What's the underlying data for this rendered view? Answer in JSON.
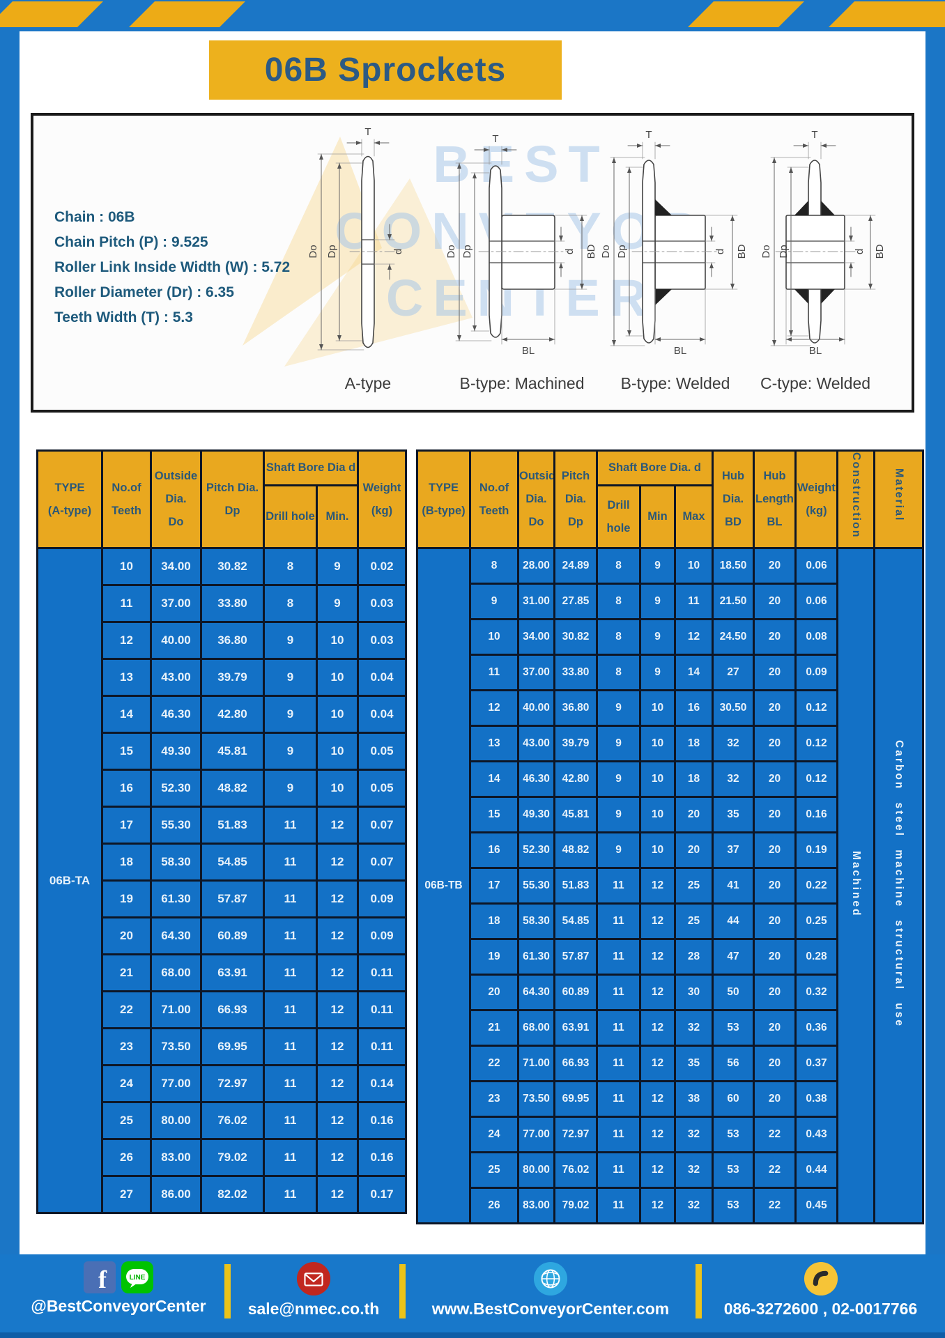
{
  "page": {
    "title": "06B Sprockets"
  },
  "colors": {
    "frame_blue": "#1b76c6",
    "gold": "#edb11d",
    "table_header_gold": "#e9a81f",
    "table_body_blue": "#1371c6",
    "footer_blue": "#1878ca"
  },
  "specs": {
    "lines": [
      "Chain  : 06B",
      "Chain Pitch (P)  :  9.525",
      "Roller Link Inside Width (W)  :  5.72",
      "Roller Diameter (Dr)  : 6.35",
      "Teeth Width (T)  :  5.3"
    ]
  },
  "watermark": "BEST\nCONVEYOR\nCENTER",
  "diagrams": {
    "dims": {
      "t": "T",
      "do": "Do",
      "dp": "Dp",
      "d": "d",
      "bd": "BD",
      "bl": "BL"
    },
    "labels": [
      "A-type",
      "B-type: Machined",
      "B-type: Welded",
      "C-type: Welded"
    ]
  },
  "table_a": {
    "headers": {
      "type": "TYPE\n(A-type)",
      "teeth": "No.of\nTeeth",
      "outside": "Outside\nDia.\nDo",
      "pitch": "Pitch Dia.\nDp",
      "bore_group": "Shaft Bore Dia d",
      "drill": "Drill hole",
      "min": "Min.",
      "weight": "Weight\n(kg)"
    },
    "type_label": "06B-TA",
    "rows": [
      [
        "10",
        "34.00",
        "30.82",
        "8",
        "9",
        "0.02"
      ],
      [
        "11",
        "37.00",
        "33.80",
        "8",
        "9",
        "0.03"
      ],
      [
        "12",
        "40.00",
        "36.80",
        "9",
        "10",
        "0.03"
      ],
      [
        "13",
        "43.00",
        "39.79",
        "9",
        "10",
        "0.04"
      ],
      [
        "14",
        "46.30",
        "42.80",
        "9",
        "10",
        "0.04"
      ],
      [
        "15",
        "49.30",
        "45.81",
        "9",
        "10",
        "0.05"
      ],
      [
        "16",
        "52.30",
        "48.82",
        "9",
        "10",
        "0.05"
      ],
      [
        "17",
        "55.30",
        "51.83",
        "11",
        "12",
        "0.07"
      ],
      [
        "18",
        "58.30",
        "54.85",
        "11",
        "12",
        "0.07"
      ],
      [
        "19",
        "61.30",
        "57.87",
        "11",
        "12",
        "0.09"
      ],
      [
        "20",
        "64.30",
        "60.89",
        "11",
        "12",
        "0.09"
      ],
      [
        "21",
        "68.00",
        "63.91",
        "11",
        "12",
        "0.11"
      ],
      [
        "22",
        "71.00",
        "66.93",
        "11",
        "12",
        "0.11"
      ],
      [
        "23",
        "73.50",
        "69.95",
        "11",
        "12",
        "0.11"
      ],
      [
        "24",
        "77.00",
        "72.97",
        "11",
        "12",
        "0.14"
      ],
      [
        "25",
        "80.00",
        "76.02",
        "11",
        "12",
        "0.16"
      ],
      [
        "26",
        "83.00",
        "79.02",
        "11",
        "12",
        "0.16"
      ],
      [
        "27",
        "86.00",
        "82.02",
        "11",
        "12",
        "0.17"
      ]
    ]
  },
  "table_b": {
    "headers": {
      "type": "TYPE\n(B-type)",
      "teeth": "No.of\nTeeth",
      "outside": "Outside\nDia.\nDo",
      "pitch": "Pitch\nDia.\nDp",
      "bore_group": "Shaft Bore Dia. d",
      "drill": "Drill hole",
      "min": "Min",
      "max": "Max",
      "hub_dia": "Hub\nDia.\nBD",
      "hub_len": "Hub\nLength\nBL",
      "weight": "Weight\n(kg)",
      "construction": "Construction",
      "material": "Material"
    },
    "type_label": "06B-TB",
    "construction_value": "Machined",
    "material_value": "Carbon steel machine structural use",
    "rows": [
      [
        "8",
        "28.00",
        "24.89",
        "8",
        "9",
        "10",
        "18.50",
        "20",
        "0.06"
      ],
      [
        "9",
        "31.00",
        "27.85",
        "8",
        "9",
        "11",
        "21.50",
        "20",
        "0.06"
      ],
      [
        "10",
        "34.00",
        "30.82",
        "8",
        "9",
        "12",
        "24.50",
        "20",
        "0.08"
      ],
      [
        "11",
        "37.00",
        "33.80",
        "8",
        "9",
        "14",
        "27",
        "20",
        "0.09"
      ],
      [
        "12",
        "40.00",
        "36.80",
        "9",
        "10",
        "16",
        "30.50",
        "20",
        "0.12"
      ],
      [
        "13",
        "43.00",
        "39.79",
        "9",
        "10",
        "18",
        "32",
        "20",
        "0.12"
      ],
      [
        "14",
        "46.30",
        "42.80",
        "9",
        "10",
        "18",
        "32",
        "20",
        "0.12"
      ],
      [
        "15",
        "49.30",
        "45.81",
        "9",
        "10",
        "20",
        "35",
        "20",
        "0.16"
      ],
      [
        "16",
        "52.30",
        "48.82",
        "9",
        "10",
        "20",
        "37",
        "20",
        "0.19"
      ],
      [
        "17",
        "55.30",
        "51.83",
        "11",
        "12",
        "25",
        "41",
        "20",
        "0.22"
      ],
      [
        "18",
        "58.30",
        "54.85",
        "11",
        "12",
        "25",
        "44",
        "20",
        "0.25"
      ],
      [
        "19",
        "61.30",
        "57.87",
        "11",
        "12",
        "28",
        "47",
        "20",
        "0.28"
      ],
      [
        "20",
        "64.30",
        "60.89",
        "11",
        "12",
        "30",
        "50",
        "20",
        "0.32"
      ],
      [
        "21",
        "68.00",
        "63.91",
        "11",
        "12",
        "32",
        "53",
        "20",
        "0.36"
      ],
      [
        "22",
        "71.00",
        "66.93",
        "11",
        "12",
        "35",
        "56",
        "20",
        "0.37"
      ],
      [
        "23",
        "73.50",
        "69.95",
        "11",
        "12",
        "38",
        "60",
        "20",
        "0.38"
      ],
      [
        "24",
        "77.00",
        "72.97",
        "11",
        "12",
        "32",
        "53",
        "22",
        "0.43"
      ],
      [
        "25",
        "80.00",
        "76.02",
        "11",
        "12",
        "32",
        "53",
        "22",
        "0.44"
      ],
      [
        "26",
        "83.00",
        "79.02",
        "11",
        "12",
        "32",
        "53",
        "22",
        "0.45"
      ]
    ]
  },
  "footer": {
    "facebook_letter": "f",
    "line_label": "LINE",
    "social_text": "@BestConveyorCenter",
    "email": "sale@nmec.co.th",
    "website": "www.BestConveyorCenter.com",
    "phones": "086-3272600 , 02-0017766"
  }
}
